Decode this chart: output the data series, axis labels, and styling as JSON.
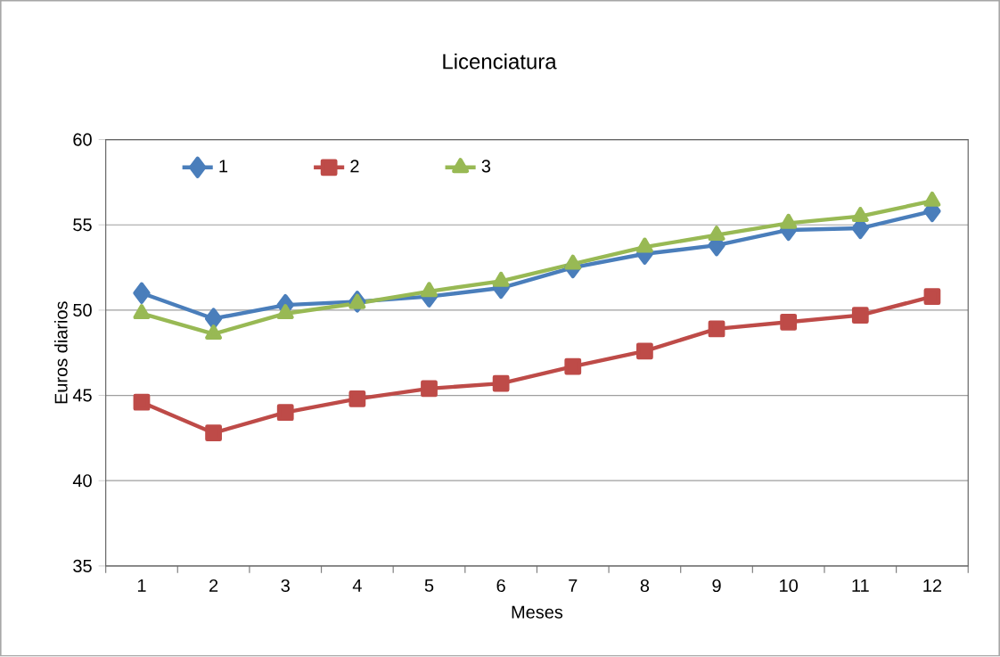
{
  "chart_data": {
    "type": "line",
    "title": "Licenciatura",
    "xlabel": "Meses",
    "ylabel": "Euros diarios",
    "categories": [
      "1",
      "2",
      "3",
      "4",
      "5",
      "6",
      "7",
      "8",
      "9",
      "10",
      "11",
      "12"
    ],
    "series": [
      {
        "name": "1",
        "color": "#4a7ebb",
        "marker": "diamond",
        "values": [
          51.0,
          49.5,
          50.3,
          50.5,
          50.8,
          51.3,
          52.5,
          53.3,
          53.8,
          54.7,
          54.8,
          55.8
        ]
      },
      {
        "name": "2",
        "color": "#be4b48",
        "marker": "square",
        "values": [
          44.6,
          42.8,
          44.0,
          44.8,
          45.4,
          45.7,
          46.7,
          47.6,
          48.9,
          49.3,
          49.7,
          50.8
        ]
      },
      {
        "name": "3",
        "color": "#98b954",
        "marker": "triangle",
        "values": [
          49.8,
          48.6,
          49.8,
          50.4,
          51.1,
          51.7,
          52.7,
          53.7,
          54.4,
          55.1,
          55.5,
          56.4
        ]
      }
    ],
    "ylim": [
      35,
      60
    ],
    "yticks": [
      35,
      40,
      45,
      50,
      55,
      60
    ],
    "grid": "y",
    "legend": "top left",
    "line_style": "solid"
  }
}
